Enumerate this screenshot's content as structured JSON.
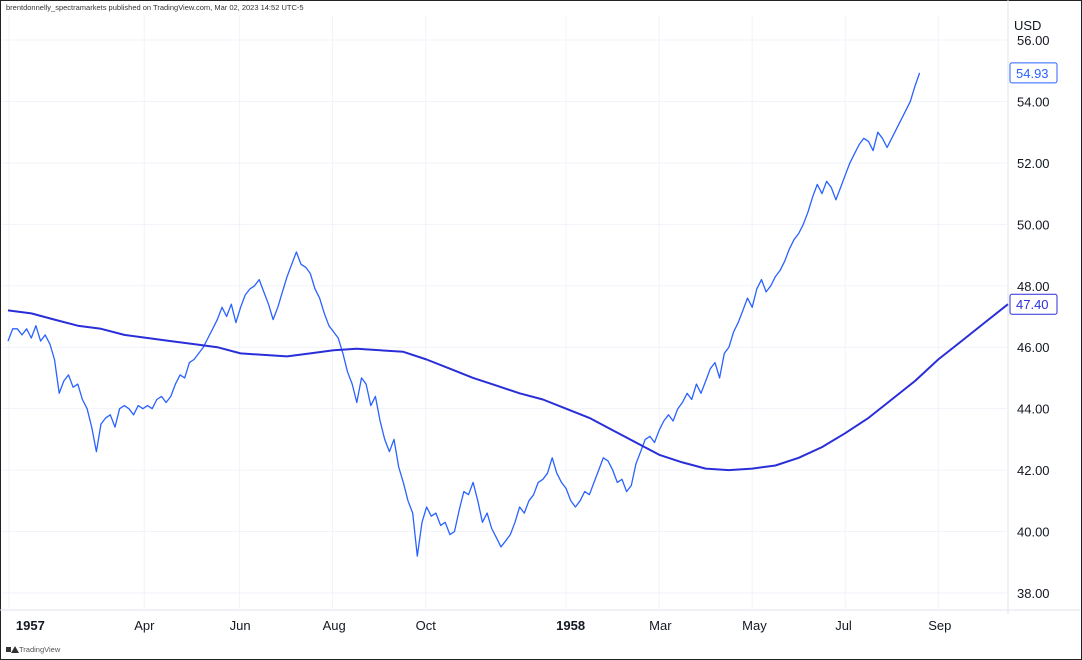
{
  "byline": "brentdonnelly_spectramarkets published on TradingView.com, Mar 02, 2023 14:52 UTC-5",
  "footer_logo_text": "TradingView",
  "chart_data": {
    "type": "line",
    "currency_label": "USD",
    "ylim": [
      37.2,
      56.6
    ],
    "y_ticks": [
      "38.00",
      "40.00",
      "42.00",
      "44.00",
      "46.00",
      "48.00",
      "50.00",
      "52.00",
      "54.00",
      "56.00"
    ],
    "x_ticks": [
      {
        "label": "1957",
        "t": 0.02,
        "bold": true
      },
      {
        "label": "Apr",
        "t": 2.93,
        "bold": false
      },
      {
        "label": "Jun",
        "t": 4.98,
        "bold": false
      },
      {
        "label": "Aug",
        "t": 6.98,
        "bold": false
      },
      {
        "label": "Oct",
        "t": 8.98,
        "bold": false
      },
      {
        "label": "1958",
        "t": 12.0,
        "bold": true
      },
      {
        "label": "Mar",
        "t": 14.0,
        "bold": false
      },
      {
        "label": "May",
        "t": 16.0,
        "bold": false
      },
      {
        "label": "Jul",
        "t": 18.0,
        "bold": false
      },
      {
        "label": "Sep",
        "t": 20.0,
        "bold": false
      }
    ],
    "grid": true,
    "series": [
      {
        "color": "#2962ff",
        "last_value_label": "54.93",
        "points": [
          [
            0.0,
            46.2
          ],
          [
            0.1,
            46.6
          ],
          [
            0.2,
            46.6
          ],
          [
            0.3,
            46.4
          ],
          [
            0.4,
            46.6
          ],
          [
            0.5,
            46.3
          ],
          [
            0.6,
            46.7
          ],
          [
            0.7,
            46.2
          ],
          [
            0.8,
            46.4
          ],
          [
            0.9,
            46.1
          ],
          [
            1.0,
            45.6
          ],
          [
            1.1,
            44.5
          ],
          [
            1.2,
            44.9
          ],
          [
            1.3,
            45.1
          ],
          [
            1.4,
            44.7
          ],
          [
            1.5,
            44.8
          ],
          [
            1.6,
            44.3
          ],
          [
            1.7,
            44.0
          ],
          [
            1.8,
            43.4
          ],
          [
            1.9,
            42.6
          ],
          [
            2.0,
            43.5
          ],
          [
            2.1,
            43.7
          ],
          [
            2.2,
            43.8
          ],
          [
            2.3,
            43.4
          ],
          [
            2.4,
            44.0
          ],
          [
            2.5,
            44.1
          ],
          [
            2.6,
            44.0
          ],
          [
            2.7,
            43.8
          ],
          [
            2.8,
            44.1
          ],
          [
            2.9,
            44.0
          ],
          [
            3.0,
            44.1
          ],
          [
            3.1,
            44.0
          ],
          [
            3.2,
            44.3
          ],
          [
            3.3,
            44.4
          ],
          [
            3.4,
            44.2
          ],
          [
            3.5,
            44.4
          ],
          [
            3.6,
            44.8
          ],
          [
            3.7,
            45.1
          ],
          [
            3.8,
            45.0
          ],
          [
            3.9,
            45.5
          ],
          [
            4.0,
            45.6
          ],
          [
            4.1,
            45.8
          ],
          [
            4.2,
            46.0
          ],
          [
            4.3,
            46.3
          ],
          [
            4.4,
            46.6
          ],
          [
            4.5,
            46.9
          ],
          [
            4.6,
            47.3
          ],
          [
            4.7,
            47.0
          ],
          [
            4.8,
            47.4
          ],
          [
            4.9,
            46.8
          ],
          [
            5.0,
            47.3
          ],
          [
            5.1,
            47.7
          ],
          [
            5.2,
            47.9
          ],
          [
            5.3,
            48.0
          ],
          [
            5.4,
            48.2
          ],
          [
            5.5,
            47.8
          ],
          [
            5.6,
            47.4
          ],
          [
            5.7,
            46.9
          ],
          [
            5.8,
            47.3
          ],
          [
            5.9,
            47.8
          ],
          [
            6.0,
            48.3
          ],
          [
            6.1,
            48.7
          ],
          [
            6.2,
            49.1
          ],
          [
            6.3,
            48.7
          ],
          [
            6.4,
            48.6
          ],
          [
            6.5,
            48.4
          ],
          [
            6.6,
            47.9
          ],
          [
            6.7,
            47.6
          ],
          [
            6.8,
            47.1
          ],
          [
            6.9,
            46.7
          ],
          [
            7.0,
            46.5
          ],
          [
            7.1,
            46.3
          ],
          [
            7.2,
            45.8
          ],
          [
            7.3,
            45.2
          ],
          [
            7.4,
            44.8
          ],
          [
            7.5,
            44.2
          ],
          [
            7.6,
            45.0
          ],
          [
            7.7,
            44.8
          ],
          [
            7.8,
            44.1
          ],
          [
            7.9,
            44.4
          ],
          [
            8.0,
            43.6
          ],
          [
            8.1,
            43.0
          ],
          [
            8.2,
            42.6
          ],
          [
            8.3,
            43.0
          ],
          [
            8.4,
            42.1
          ],
          [
            8.5,
            41.6
          ],
          [
            8.6,
            41.0
          ],
          [
            8.7,
            40.6
          ],
          [
            8.8,
            39.2
          ],
          [
            8.9,
            40.3
          ],
          [
            9.0,
            40.8
          ],
          [
            9.1,
            40.5
          ],
          [
            9.2,
            40.6
          ],
          [
            9.3,
            40.2
          ],
          [
            9.4,
            40.3
          ],
          [
            9.5,
            39.9
          ],
          [
            9.6,
            40.0
          ],
          [
            9.7,
            40.7
          ],
          [
            9.8,
            41.3
          ],
          [
            9.9,
            41.2
          ],
          [
            10.0,
            41.6
          ],
          [
            10.1,
            41.0
          ],
          [
            10.2,
            40.3
          ],
          [
            10.3,
            40.6
          ],
          [
            10.4,
            40.1
          ],
          [
            10.5,
            39.8
          ],
          [
            10.6,
            39.5
          ],
          [
            10.7,
            39.7
          ],
          [
            10.8,
            39.9
          ],
          [
            10.9,
            40.3
          ],
          [
            11.0,
            40.8
          ],
          [
            11.1,
            40.6
          ],
          [
            11.2,
            41.0
          ],
          [
            11.3,
            41.2
          ],
          [
            11.4,
            41.6
          ],
          [
            11.5,
            41.7
          ],
          [
            11.6,
            41.9
          ],
          [
            11.7,
            42.4
          ],
          [
            11.8,
            41.9
          ],
          [
            11.9,
            41.6
          ],
          [
            12.0,
            41.4
          ],
          [
            12.1,
            41.0
          ],
          [
            12.2,
            40.8
          ],
          [
            12.3,
            41.0
          ],
          [
            12.4,
            41.3
          ],
          [
            12.5,
            41.2
          ],
          [
            12.6,
            41.6
          ],
          [
            12.7,
            42.0
          ],
          [
            12.8,
            42.4
          ],
          [
            12.9,
            42.3
          ],
          [
            13.0,
            42.0
          ],
          [
            13.1,
            41.6
          ],
          [
            13.2,
            41.7
          ],
          [
            13.3,
            41.3
          ],
          [
            13.4,
            41.5
          ],
          [
            13.5,
            42.2
          ],
          [
            13.6,
            42.6
          ],
          [
            13.7,
            43.0
          ],
          [
            13.8,
            43.1
          ],
          [
            13.9,
            42.9
          ],
          [
            14.0,
            43.3
          ],
          [
            14.1,
            43.6
          ],
          [
            14.2,
            43.8
          ],
          [
            14.3,
            43.6
          ],
          [
            14.4,
            44.0
          ],
          [
            14.5,
            44.2
          ],
          [
            14.6,
            44.5
          ],
          [
            14.7,
            44.3
          ],
          [
            14.8,
            44.8
          ],
          [
            14.9,
            44.5
          ],
          [
            15.0,
            44.9
          ],
          [
            15.1,
            45.3
          ],
          [
            15.2,
            45.5
          ],
          [
            15.3,
            45.0
          ],
          [
            15.4,
            45.8
          ],
          [
            15.5,
            46.0
          ],
          [
            15.6,
            46.5
          ],
          [
            15.7,
            46.8
          ],
          [
            15.8,
            47.2
          ],
          [
            15.9,
            47.6
          ],
          [
            16.0,
            47.3
          ],
          [
            16.1,
            47.9
          ],
          [
            16.2,
            48.2
          ],
          [
            16.3,
            47.8
          ],
          [
            16.4,
            48.0
          ],
          [
            16.5,
            48.3
          ],
          [
            16.6,
            48.5
          ],
          [
            16.7,
            48.8
          ],
          [
            16.8,
            49.2
          ],
          [
            16.9,
            49.5
          ],
          [
            17.0,
            49.7
          ],
          [
            17.1,
            50.0
          ],
          [
            17.2,
            50.4
          ],
          [
            17.3,
            50.9
          ],
          [
            17.4,
            51.3
          ],
          [
            17.5,
            51.0
          ],
          [
            17.6,
            51.4
          ],
          [
            17.7,
            51.2
          ],
          [
            17.8,
            50.8
          ],
          [
            17.9,
            51.2
          ],
          [
            18.0,
            51.6
          ],
          [
            18.1,
            52.0
          ],
          [
            18.2,
            52.3
          ],
          [
            18.3,
            52.6
          ],
          [
            18.4,
            52.8
          ],
          [
            18.5,
            52.7
          ],
          [
            18.6,
            52.4
          ],
          [
            18.7,
            53.0
          ],
          [
            18.8,
            52.8
          ],
          [
            18.9,
            52.5
          ],
          [
            19.0,
            52.8
          ],
          [
            19.1,
            53.1
          ],
          [
            19.2,
            53.4
          ],
          [
            19.3,
            53.7
          ],
          [
            19.4,
            54.0
          ],
          [
            19.5,
            54.5
          ],
          [
            19.6,
            54.93
          ]
        ]
      },
      {
        "color": "#2a2ed8",
        "last_value_label": "47.40",
        "points": [
          [
            0.0,
            47.2
          ],
          [
            0.5,
            47.1
          ],
          [
            1.0,
            46.9
          ],
          [
            1.5,
            46.7
          ],
          [
            2.0,
            46.6
          ],
          [
            2.5,
            46.4
          ],
          [
            3.0,
            46.3
          ],
          [
            3.5,
            46.2
          ],
          [
            4.0,
            46.1
          ],
          [
            4.5,
            46.0
          ],
          [
            5.0,
            45.8
          ],
          [
            5.5,
            45.75
          ],
          [
            6.0,
            45.7
          ],
          [
            6.5,
            45.8
          ],
          [
            7.0,
            45.9
          ],
          [
            7.5,
            45.95
          ],
          [
            8.0,
            45.9
          ],
          [
            8.5,
            45.85
          ],
          [
            9.0,
            45.6
          ],
          [
            9.5,
            45.3
          ],
          [
            10.0,
            45.0
          ],
          [
            10.5,
            44.75
          ],
          [
            11.0,
            44.5
          ],
          [
            11.5,
            44.3
          ],
          [
            12.0,
            44.0
          ],
          [
            12.5,
            43.7
          ],
          [
            13.0,
            43.3
          ],
          [
            13.5,
            42.9
          ],
          [
            14.0,
            42.5
          ],
          [
            14.5,
            42.25
          ],
          [
            15.0,
            42.05
          ],
          [
            15.5,
            42.0
          ],
          [
            16.0,
            42.05
          ],
          [
            16.5,
            42.15
          ],
          [
            17.0,
            42.4
          ],
          [
            17.5,
            42.75
          ],
          [
            18.0,
            43.2
          ],
          [
            18.5,
            43.7
          ],
          [
            19.0,
            44.3
          ],
          [
            19.5,
            44.9
          ],
          [
            20.0,
            45.6
          ],
          [
            20.5,
            46.2
          ],
          [
            21.0,
            46.8
          ],
          [
            21.5,
            47.4
          ]
        ]
      }
    ]
  }
}
